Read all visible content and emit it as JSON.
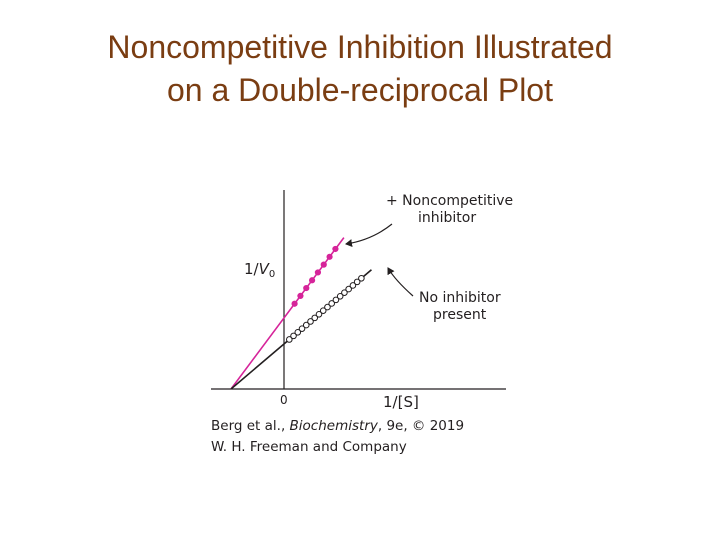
{
  "slide": {
    "title_line1": "Noncompetitive Inhibition Illustrated",
    "title_line2": "on a Double-reciprocal Plot"
  },
  "credit": {
    "line1_prefix": "Berg et al., ",
    "line1_italic": "Biochemistry",
    "line1_suffix": ", 9e, © 2019",
    "line2": "W. H. Freeman and Company"
  },
  "colors": {
    "inhibitor": "#d6249a",
    "no_inhibitor": "#231f20",
    "title": "#7a3d12",
    "axis": "#231f20"
  },
  "chart_data": {
    "type": "line",
    "title": "",
    "xlabel": "1/[S]",
    "ylabel": "1/V0",
    "origin_label": "0",
    "xlim": [
      -1.0,
      2.5
    ],
    "ylim": [
      0,
      4.2
    ],
    "grid": false,
    "series": [
      {
        "name": "+ Noncompetitive inhibitor",
        "label_line1": "+ Noncompetitive",
        "label_line2": "inhibitor",
        "marker": "filled",
        "line": {
          "x_start": -1.0,
          "x_end": 1.13,
          "intercept": 1.5,
          "slope": 1.5
        },
        "x": [
          0.2,
          0.31,
          0.42,
          0.53,
          0.64,
          0.75,
          0.86,
          0.97
        ],
        "y": [
          1.8,
          1.965,
          2.13,
          2.295,
          2.46,
          2.625,
          2.79,
          2.955
        ]
      },
      {
        "name": "No inhibitor present",
        "label_line1": "No inhibitor",
        "label_line2": "present",
        "marker": "open",
        "line": {
          "x_start": -1.0,
          "x_end": 1.65,
          "intercept": 0.95,
          "slope": 0.95
        },
        "x": [
          0.1,
          0.18,
          0.26,
          0.34,
          0.42,
          0.5,
          0.58,
          0.66,
          0.74,
          0.82,
          0.9,
          0.98,
          1.06,
          1.14,
          1.22,
          1.3,
          1.38,
          1.46
        ],
        "y": [
          1.045,
          1.121,
          1.197,
          1.273,
          1.349,
          1.425,
          1.501,
          1.577,
          1.653,
          1.729,
          1.805,
          1.881,
          1.957,
          2.033,
          2.109,
          2.185,
          2.261,
          2.337
        ]
      }
    ]
  }
}
